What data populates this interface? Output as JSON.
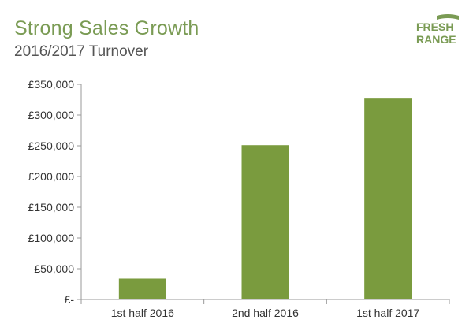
{
  "header": {
    "title": "Strong Sales Growth",
    "subtitle": "2016/2017 Turnover"
  },
  "logo": {
    "text_line1": "FRESH",
    "text_line2": "RANGE",
    "color": "#7a9b54"
  },
  "colors": {
    "bar": "#7a9b3e",
    "axis": "#9a9a9a",
    "tick_text": "#333333"
  },
  "chart_data": {
    "type": "bar",
    "title": "Strong Sales Growth",
    "subtitle": "2016/2017 Turnover",
    "categories": [
      "1st half 2016",
      "2nd half 2016",
      "1st half 2017"
    ],
    "values": [
      34000,
      251000,
      328000
    ],
    "ylim": [
      0,
      350000
    ],
    "y_ticks": [
      0,
      50000,
      100000,
      150000,
      200000,
      250000,
      300000,
      350000
    ],
    "y_tick_labels": [
      "£-",
      "£50,000",
      "£100,000",
      "£150,000",
      "£200,000",
      "£250,000",
      "£300,000",
      "£350,000"
    ],
    "xlabel": "",
    "ylabel": "",
    "grid": false,
    "legend": "none"
  }
}
